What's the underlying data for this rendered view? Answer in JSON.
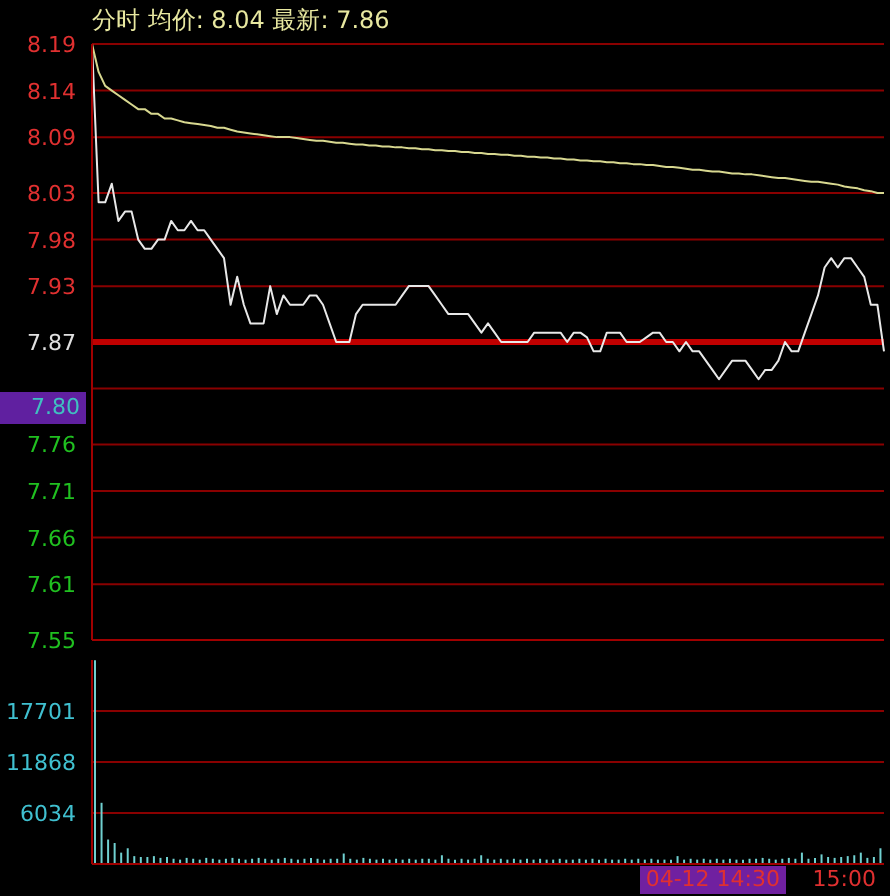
{
  "chart_data": [
    {
      "type": "line",
      "title": "分时 均价: 8.04 最新: 7.86",
      "ylim": [
        7.55,
        8.19
      ],
      "categories": [
        null,
        null,
        null,
        null,
        null,
        null,
        null,
        null,
        null,
        null,
        null,
        null,
        null,
        null,
        null,
        null,
        null,
        null,
        null,
        null,
        null,
        null,
        null,
        null,
        null,
        null,
        null,
        null,
        null,
        null,
        null,
        null,
        null,
        null,
        null,
        null,
        null,
        null,
        null,
        null,
        null,
        null,
        null,
        null,
        null,
        null,
        null,
        null,
        null,
        null,
        null,
        null,
        null,
        null,
        null,
        null,
        null,
        null,
        null,
        null,
        null,
        null,
        null,
        null,
        null,
        null,
        null,
        null,
        null,
        null,
        null,
        null,
        null,
        null,
        null,
        null,
        null,
        null,
        null,
        null,
        null,
        null,
        null,
        null,
        null,
        null,
        null,
        null,
        null,
        null,
        null,
        null,
        null,
        null,
        null,
        null,
        null,
        null,
        null,
        null,
        null,
        null,
        null,
        null,
        null,
        null,
        null,
        null,
        null,
        null,
        null,
        null,
        null,
        null,
        null,
        null,
        null,
        null,
        null,
        null,
        null
      ],
      "yticks": [
        8.19,
        8.14,
        8.09,
        8.03,
        7.98,
        7.93,
        7.87,
        {
          "value": 7.82,
          "label": null
        },
        7.76,
        7.71,
        7.66,
        7.61,
        7.55
      ],
      "tick_labels": "y",
      "grid": "y",
      "marker": "none",
      "line_style": "solid",
      "ref_lines": [
        {
          "axis": "y",
          "value": 7.87,
          "label": null,
          "color": "#c00000"
        }
      ],
      "annotations": [
        "7.80"
      ],
      "series": [
        {
          "color": "#e8e8e8",
          "values": [
            8.19,
            8.02,
            8.02,
            8.04,
            8.0,
            8.01,
            8.01,
            7.98,
            7.97,
            7.97,
            7.98,
            7.98,
            8.0,
            7.99,
            7.99,
            8.0,
            7.99,
            7.99,
            7.98,
            7.97,
            7.96,
            7.91,
            7.94,
            7.91,
            7.89,
            7.89,
            7.89,
            7.93,
            7.9,
            7.92,
            7.91,
            7.91,
            7.91,
            7.92,
            7.92,
            7.91,
            7.89,
            7.87,
            7.87,
            7.87,
            7.9,
            7.91,
            7.91,
            7.91,
            7.91,
            7.91,
            7.91,
            7.92,
            7.93,
            7.93,
            7.93,
            7.93,
            7.92,
            7.91,
            7.9,
            7.9,
            7.9,
            7.9,
            7.89,
            7.88,
            7.89,
            7.88,
            7.87,
            7.87,
            7.87,
            7.87,
            7.87,
            7.88,
            7.88,
            7.88,
            7.88,
            7.88,
            7.87,
            7.88,
            7.88,
            7.875,
            7.86,
            7.86,
            7.88,
            7.88,
            7.88,
            7.87,
            7.87,
            7.87,
            7.875,
            7.88,
            7.88,
            7.87,
            7.87,
            7.86,
            7.87,
            7.86,
            7.86,
            7.85,
            7.84,
            7.83,
            7.84,
            7.85,
            7.85,
            7.85,
            7.84,
            7.83,
            7.84,
            7.84,
            7.85,
            7.87,
            7.86,
            7.86,
            7.88,
            7.9,
            7.92,
            7.95,
            7.96,
            7.95,
            7.96,
            7.96,
            7.95,
            7.94,
            7.91,
            7.91,
            7.86
          ]
        },
        {
          "color": "#d8d890",
          "values": [
            8.19,
            8.16,
            8.145,
            8.14,
            8.135,
            8.13,
            8.125,
            8.12,
            8.12,
            8.115,
            8.115,
            8.11,
            8.11,
            8.108,
            8.106,
            8.105,
            8.104,
            8.103,
            8.102,
            8.1,
            8.1,
            8.098,
            8.096,
            8.095,
            8.094,
            8.093,
            8.092,
            8.091,
            8.09,
            8.09,
            8.09,
            8.089,
            8.088,
            8.087,
            8.086,
            8.086,
            8.085,
            8.084,
            8.084,
            8.083,
            8.082,
            8.082,
            8.081,
            8.081,
            8.08,
            8.08,
            8.079,
            8.079,
            8.078,
            8.078,
            8.077,
            8.077,
            8.076,
            8.076,
            8.075,
            8.075,
            8.074,
            8.074,
            8.073,
            8.073,
            8.072,
            8.072,
            8.071,
            8.071,
            8.07,
            8.07,
            8.069,
            8.069,
            8.068,
            8.068,
            8.067,
            8.067,
            8.066,
            8.066,
            8.065,
            8.065,
            8.064,
            8.064,
            8.063,
            8.063,
            8.062,
            8.062,
            8.061,
            8.061,
            8.06,
            8.06,
            8.059,
            8.058,
            8.058,
            8.057,
            8.056,
            8.055,
            8.055,
            8.054,
            8.053,
            8.053,
            8.052,
            8.051,
            8.051,
            8.05,
            8.05,
            8.049,
            8.048,
            8.047,
            8.046,
            8.046,
            8.045,
            8.044,
            8.043,
            8.042,
            8.042,
            8.041,
            8.04,
            8.039,
            8.037,
            8.036,
            8.035,
            8.033,
            8.032,
            8.03,
            8.03
          ]
        }
      ]
    },
    {
      "type": "bar",
      "ylim": [
        200,
        23535
      ],
      "yticks": [
        6034,
        11868,
        17701
      ],
      "grid": "y",
      "tick_labels": "y",
      "categories": [
        null,
        null,
        null,
        null,
        null,
        null,
        null,
        null,
        null,
        null,
        null,
        null,
        null,
        null,
        null,
        null,
        null,
        null,
        null,
        null,
        null,
        null,
        null,
        null,
        null,
        null,
        null,
        null,
        null,
        null,
        null,
        null,
        null,
        null,
        null,
        null,
        null,
        null,
        null,
        null,
        null,
        null,
        null,
        null,
        null,
        null,
        null,
        null,
        null,
        null,
        null,
        null,
        null,
        null,
        null,
        null,
        null,
        null,
        null,
        null,
        null,
        null,
        null,
        null,
        null,
        null,
        null,
        null,
        null,
        null,
        null,
        null,
        null,
        null,
        null,
        null,
        null,
        null,
        null,
        null,
        null,
        null,
        null,
        null,
        null,
        null,
        null,
        null,
        null,
        null,
        null,
        null,
        null,
        null,
        null,
        null,
        null,
        null,
        null,
        null,
        null,
        null,
        null,
        null,
        null,
        null,
        null,
        null,
        null,
        null,
        null,
        null,
        null,
        null,
        null,
        null,
        null,
        null,
        null,
        null,
        null
      ],
      "annotations": [
        "04-12 14:30",
        "15:00"
      ],
      "series": [
        {
          "color": "#70d0d0",
          "values": [
            23500,
            7200,
            3000,
            2600,
            1500,
            2000,
            1100,
            1000,
            1000,
            1100,
            900,
            1000,
            800,
            700,
            900,
            800,
            700,
            900,
            800,
            700,
            800,
            900,
            800,
            700,
            800,
            900,
            800,
            700,
            800,
            900,
            800,
            700,
            800,
            900,
            800,
            700,
            800,
            800,
            1400,
            800,
            700,
            900,
            800,
            700,
            800,
            700,
            800,
            700,
            800,
            700,
            800,
            800,
            700,
            1200,
            800,
            700,
            800,
            700,
            800,
            1200,
            800,
            700,
            800,
            700,
            800,
            700,
            800,
            700,
            800,
            700,
            700,
            800,
            700,
            700,
            800,
            700,
            800,
            700,
            800,
            700,
            700,
            800,
            700,
            800,
            700,
            800,
            700,
            700,
            700,
            1100,
            700,
            800,
            700,
            800,
            700,
            800,
            700,
            800,
            700,
            700,
            800,
            800,
            900,
            800,
            700,
            800,
            900,
            800,
            1500,
            800,
            900,
            1300,
            1000,
            900,
            1000,
            1100,
            1200,
            1500,
            900,
            1000,
            2000
          ]
        }
      ]
    }
  ]
}
